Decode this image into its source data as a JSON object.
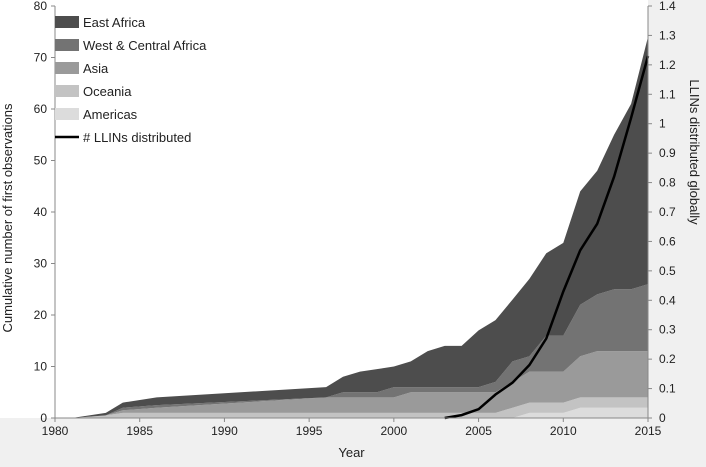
{
  "chart_data": {
    "type": "area",
    "xlabel": "Year",
    "ylabel": "Cumulative number of first observations",
    "y2label": "LLINs distributed globally",
    "xlim": [
      1980,
      2015
    ],
    "ylim": [
      0,
      80
    ],
    "y2lim": [
      0,
      1.4
    ],
    "x_ticks": [
      1980,
      1985,
      1990,
      1995,
      2000,
      2005,
      2010,
      2015
    ],
    "y_ticks": [
      0,
      10,
      20,
      30,
      40,
      50,
      60,
      70,
      80
    ],
    "y2_ticks": [
      0,
      0.1,
      0.2,
      0.3,
      0.4,
      0.5,
      0.6,
      0.7,
      0.8,
      0.9,
      1,
      1.1,
      1.2,
      1.3,
      1.4
    ],
    "grid": false,
    "legend_position": "top-left",
    "x": [
      1980,
      1981,
      1983,
      1984,
      1986,
      1996,
      1997,
      1998,
      1999,
      2000,
      2001,
      2002,
      2003,
      2004,
      2005,
      2006,
      2007,
      2008,
      2009,
      2010,
      2011,
      2012,
      2013,
      2014,
      2015
    ],
    "series": [
      {
        "name": "Americas",
        "color": "#dcdcdc",
        "values": [
          0,
          0,
          0,
          0,
          0,
          0,
          0,
          0,
          0,
          0,
          0,
          0,
          0,
          0,
          0,
          0,
          0,
          1,
          1,
          1,
          2,
          2,
          2,
          2,
          2
        ]
      },
      {
        "name": "Oceania",
        "color": "#c3c3c3",
        "values": [
          0,
          0,
          0.5,
          1,
          1,
          1,
          1,
          1,
          1,
          1,
          1,
          1,
          1,
          1,
          1,
          1,
          2,
          2,
          2,
          2,
          2,
          2,
          2,
          2,
          2
        ]
      },
      {
        "name": "Asia",
        "color": "#9a9a9a",
        "values": [
          0,
          0,
          0,
          0.5,
          1,
          3,
          3,
          3,
          3,
          3,
          4,
          4,
          4,
          4,
          4,
          4,
          5,
          6,
          6,
          6,
          8,
          9,
          9,
          9,
          9
        ]
      },
      {
        "name": "West & Central Africa",
        "color": "#737373",
        "values": [
          0,
          0,
          0,
          0.5,
          0.5,
          0,
          1,
          1,
          1,
          2,
          1,
          1,
          1,
          1,
          1,
          2,
          4,
          3,
          7,
          7,
          10,
          11,
          12,
          12,
          13
        ]
      },
      {
        "name": "East Africa",
        "color": "#4d4d4d",
        "values": [
          0,
          0,
          0.5,
          1,
          1.5,
          2,
          3,
          4,
          4.5,
          4,
          5,
          7,
          8,
          8,
          11,
          12,
          12,
          15,
          16,
          18,
          22,
          24,
          30,
          36,
          48
        ]
      }
    ],
    "line_series": {
      "name": "# LLINs distributed",
      "axis": "right",
      "color": "#000000",
      "x": [
        2003,
        2004,
        2005,
        2006,
        2007,
        2008,
        2009,
        2010,
        2011,
        2012,
        2013,
        2014,
        2015
      ],
      "values": [
        0,
        0.01,
        0.03,
        0.08,
        0.12,
        0.18,
        0.27,
        0.43,
        0.57,
        0.66,
        0.82,
        1.02,
        1.23
      ]
    }
  }
}
